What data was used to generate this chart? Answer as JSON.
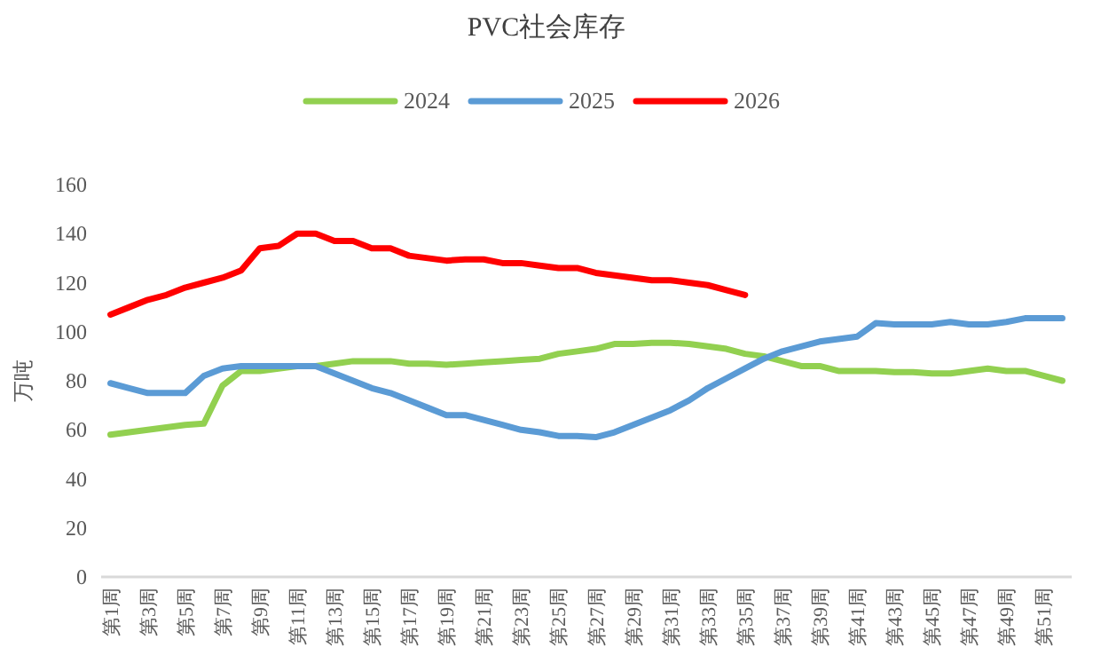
{
  "chart_data": {
    "type": "line",
    "title": "PVC社会库存",
    "ylabel": "万吨",
    "categories": [
      "第1周",
      null,
      "第3周",
      null,
      "第5周",
      null,
      "第7周",
      null,
      "第9周",
      null,
      "第11周",
      null,
      "第13周",
      null,
      "第15周",
      null,
      "第17周",
      null,
      "第19周",
      null,
      "第21周",
      null,
      "第23周",
      null,
      "第25周",
      null,
      "第27周",
      null,
      "第29周",
      null,
      "第31周",
      null,
      "第33周",
      null,
      "第35周",
      null,
      "第37周",
      null,
      "第39周",
      null,
      "第41周",
      null,
      "第43周",
      null,
      "第45周",
      null,
      "第47周",
      null,
      "第49周",
      null,
      "第51周",
      null
    ],
    "series": [
      {
        "name": "2024",
        "color": "#92d050",
        "values": [
          58,
          59,
          60,
          61,
          62,
          62.5,
          78,
          84,
          84,
          85,
          86,
          86,
          87,
          88,
          88,
          88,
          87,
          87,
          86.5,
          87,
          87.5,
          88,
          88.5,
          89,
          91,
          92,
          93,
          95,
          95,
          95.5,
          95.5,
          95,
          94,
          93,
          91,
          90,
          88,
          86,
          86,
          84,
          84,
          84,
          83.5,
          83.5,
          83,
          83,
          84,
          85,
          84,
          84,
          82,
          80
        ]
      },
      {
        "name": "2025",
        "color": "#5b9bd5",
        "values": [
          79,
          77,
          75,
          75,
          75,
          82,
          85,
          86,
          86,
          86,
          86,
          86,
          83,
          80,
          77,
          75,
          72,
          69,
          66,
          66,
          64,
          62,
          60,
          59,
          57.5,
          57.5,
          57,
          59,
          62,
          65,
          68,
          72,
          77,
          81,
          85,
          89,
          92,
          94,
          96,
          97,
          98,
          103.5,
          103,
          103,
          103,
          104,
          103,
          103,
          104,
          105.5,
          105.5,
          105.5
        ]
      },
      {
        "name": "2026",
        "color": "#ff0000",
        "values": [
          107,
          110,
          113,
          115,
          118,
          120,
          122,
          125,
          134,
          135,
          140,
          140,
          137,
          137,
          134,
          134,
          131,
          130,
          129,
          129.5,
          129.5,
          128,
          128,
          127,
          126,
          126,
          124,
          123,
          122,
          121,
          121,
          120,
          119,
          117,
          115,
          null,
          null,
          null,
          null,
          null,
          null,
          null,
          null,
          null,
          null,
          null,
          null,
          null,
          null,
          null,
          null,
          null
        ]
      }
    ],
    "ylim": [
      0,
      160
    ],
    "yticks": [
      0,
      20,
      40,
      60,
      80,
      100,
      120,
      140,
      160
    ],
    "legend": "top"
  }
}
